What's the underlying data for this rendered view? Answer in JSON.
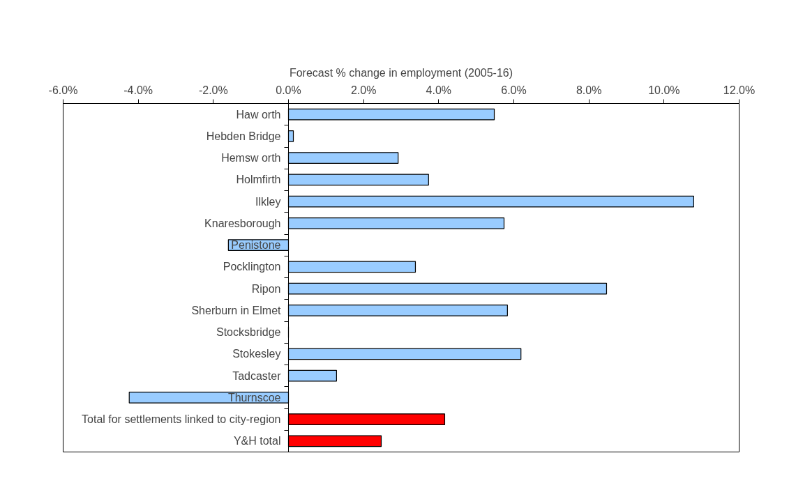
{
  "chart_data": {
    "type": "bar",
    "orientation": "horizontal",
    "xlabel": "Forecast % change in employment (2005-16)",
    "categories": [
      "Haw orth",
      "Hebden Bridge",
      "Hemsw orth",
      "Holmfirth",
      "Ilkley",
      "Knaresborough",
      "Penistone",
      "Pocklington",
      "Ripon",
      "Sherburn in Elmet",
      "Stocksbridge",
      "Stokesley",
      "Tadcaster",
      "Thurnscoe",
      "Total for settlements linked to city-region",
      "Y&H total"
    ],
    "values": [
      5.48,
      0.13,
      2.92,
      3.73,
      10.79,
      5.74,
      -1.6,
      3.38,
      8.47,
      5.83,
      0,
      6.19,
      1.28,
      -4.24,
      4.16,
      2.47
    ],
    "colors": [
      "#99ccff",
      "#99ccff",
      "#99ccff",
      "#99ccff",
      "#99ccff",
      "#99ccff",
      "#99ccff",
      "#99ccff",
      "#99ccff",
      "#99ccff",
      "#99ccff",
      "#99ccff",
      "#99ccff",
      "#99ccff",
      "#ff0000",
      "#ff0000"
    ],
    "xlim": [
      -6,
      12
    ],
    "xticks": [
      {
        "value": -6,
        "label": "-6.0%"
      },
      {
        "value": -4,
        "label": "-4.0%"
      },
      {
        "value": -2,
        "label": "-2.0%"
      },
      {
        "value": 0,
        "label": "0.0%"
      },
      {
        "value": 2,
        "label": "2.0%"
      },
      {
        "value": 4,
        "label": "4.0%"
      },
      {
        "value": 6,
        "label": "6.0%"
      },
      {
        "value": 8,
        "label": "8.0%"
      },
      {
        "value": 10,
        "label": "10.0%"
      },
      {
        "value": 12,
        "label": "12.0%"
      }
    ],
    "grid": false
  }
}
